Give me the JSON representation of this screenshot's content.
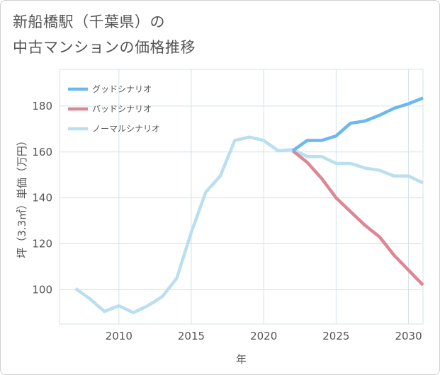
{
  "title_line1": "新船橋駅（千葉県）の",
  "title_line2": "中古マンションの価格推移",
  "chart_data": {
    "type": "line",
    "xlabel": "年",
    "ylabel": "坪（3.3㎡）単価（万円）",
    "xlim": [
      2005.9,
      2031
    ],
    "ylim": [
      85,
      196
    ],
    "xticks": [
      2010,
      2015,
      2020,
      2025,
      2030
    ],
    "yticks": [
      100,
      120,
      140,
      160,
      180
    ],
    "grid": true,
    "legend_position": "top-left",
    "series": [
      {
        "name": "グッドシナリオ",
        "color": "#6cb8ee",
        "x": [
          2022,
          2023,
          2024,
          2025,
          2026,
          2027,
          2028,
          2029,
          2030,
          2031
        ],
        "y": [
          160.5,
          165,
          165,
          167,
          172.5,
          173.5,
          176,
          179,
          181,
          183.5
        ]
      },
      {
        "name": "バッドシナリオ",
        "color": "#dc8793",
        "x": [
          2022,
          2023,
          2024,
          2025,
          2026,
          2027,
          2028,
          2029,
          2030,
          2031
        ],
        "y": [
          160.5,
          155.5,
          148.5,
          140,
          134,
          128,
          123,
          115,
          108.5,
          102
        ]
      },
      {
        "name": "ノーマルシナリオ",
        "color": "#badff0",
        "x": [
          2007,
          2008,
          2009,
          2010,
          2011,
          2012,
          2013,
          2014,
          2015,
          2016,
          2017,
          2018,
          2019,
          2020,
          2021,
          2022,
          2023,
          2024,
          2025,
          2026,
          2027,
          2028,
          2029,
          2030,
          2031
        ],
        "y": [
          100.5,
          96,
          90.5,
          93,
          90,
          93,
          97,
          105,
          125,
          142.5,
          149.5,
          165,
          166.5,
          165,
          160.5,
          161,
          158,
          158,
          155,
          155,
          153,
          152,
          149.5,
          149.5,
          146.5
        ]
      }
    ]
  }
}
